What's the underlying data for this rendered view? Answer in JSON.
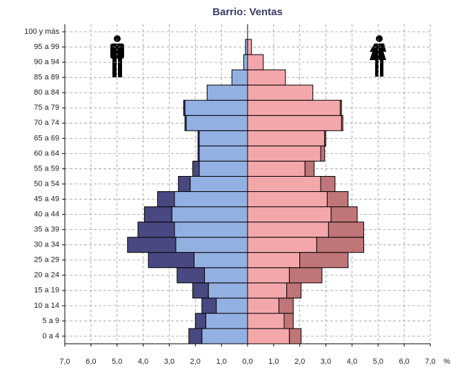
{
  "chart_data": {
    "type": "pyramid",
    "title": "Barrio: Ventas",
    "x_label": "%",
    "categories": [
      "0 a 4",
      "5 a 9",
      "10 a 14",
      "15 a 19",
      "20 a 24",
      "25 a 29",
      "30 a 34",
      "35 a 39",
      "40 a 44",
      "45 a 49",
      "50 a 54",
      "55 a 59",
      "60 a 64",
      "65 a 69",
      "70 a 74",
      "75 a 79",
      "80 a 84",
      "85 a 89",
      "90 a 94",
      "95 a 99",
      "100 y más"
    ],
    "series": [
      {
        "color": "#93b0e2",
        "values": [
          -1.75,
          -1.6,
          -1.2,
          -1.5,
          -1.65,
          -2.05,
          -2.75,
          -2.8,
          -2.9,
          -2.8,
          -2.2,
          -1.85,
          -1.85,
          -1.85,
          -2.35,
          -2.4,
          -1.55,
          -0.6,
          -0.15,
          -0.08,
          0
        ]
      },
      {
        "color": "#4a4880",
        "values": [
          -0.5,
          -0.4,
          -0.55,
          -0.6,
          -1.05,
          -1.75,
          -1.85,
          -1.4,
          -1.05,
          -0.65,
          -0.45,
          -0.25,
          -0.05,
          -0.05,
          -0.05,
          -0.05,
          0,
          0,
          0,
          0,
          0
        ]
      },
      {
        "color": "#f4a7ab",
        "values": [
          1.6,
          1.4,
          1.2,
          1.5,
          1.6,
          2.0,
          2.65,
          3.1,
          3.2,
          3.05,
          2.8,
          2.2,
          2.8,
          2.95,
          3.6,
          3.55,
          2.5,
          1.45,
          0.6,
          0.15,
          0
        ]
      },
      {
        "color": "#c07578",
        "values": [
          0.45,
          0.35,
          0.55,
          0.55,
          1.25,
          1.85,
          1.8,
          1.35,
          1.0,
          0.8,
          0.55,
          0.35,
          0.15,
          0.05,
          0.05,
          0.05,
          0,
          0,
          0,
          0,
          0
        ]
      }
    ],
    "xlim": [
      -7,
      7
    ],
    "xticks": [
      {
        "value": -7,
        "label": "7,0"
      },
      {
        "value": -6,
        "label": "6,0"
      },
      {
        "value": -5,
        "label": "5,0"
      },
      {
        "value": -4,
        "label": "4,0"
      },
      {
        "value": -3,
        "label": "3,0"
      },
      {
        "value": -2,
        "label": "2,0"
      },
      {
        "value": -1,
        "label": "1,0"
      },
      {
        "value": 0,
        "label": "0,0"
      },
      {
        "value": 1,
        "label": "1,0"
      },
      {
        "value": 2,
        "label": "2,0"
      },
      {
        "value": 3,
        "label": "3,0"
      },
      {
        "value": 4,
        "label": "4,0"
      },
      {
        "value": 5,
        "label": "5,0"
      },
      {
        "value": 6,
        "label": "6,0"
      },
      {
        "value": 7,
        "label": "7,0"
      }
    ],
    "grid": true
  }
}
